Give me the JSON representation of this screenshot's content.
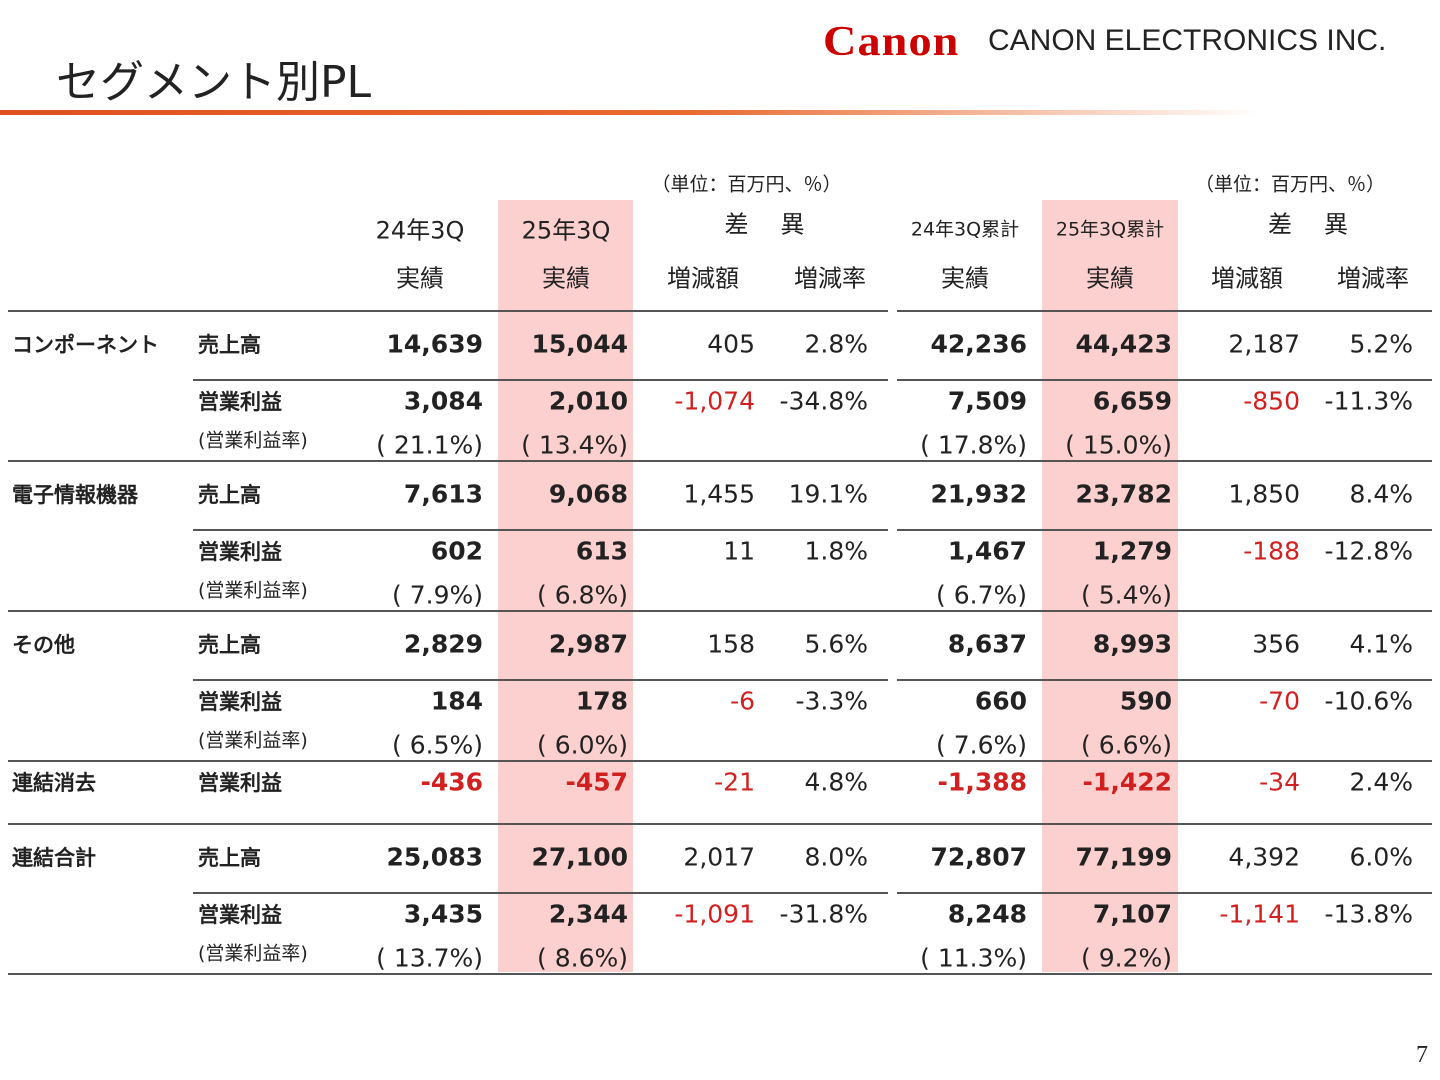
{
  "header": {
    "title": "セグメント別PL",
    "logo": "Canon",
    "company": "CANON ELECTRONICS INC."
  },
  "table": {
    "column_groups": [
      {
        "unit": "（単位：百万円、％）",
        "periods": [
          {
            "label": "24年3Q",
            "sub": "実績"
          },
          {
            "label": "25年3Q",
            "sub": "実績"
          }
        ],
        "diff": {
          "label": "差　異",
          "subs": [
            "増減額",
            "増減率"
          ]
        }
      },
      {
        "unit": "（単位：百万円、％）",
        "periods": [
          {
            "label": "24年3Q累計",
            "sub": "実績"
          },
          {
            "label": "25年3Q累計",
            "sub": "実績"
          }
        ],
        "diff": {
          "label": "差　異",
          "subs": [
            "増減額",
            "増減率"
          ]
        }
      }
    ],
    "segments": [
      {
        "name": "コンポーネント",
        "rows": [
          {
            "label": "売上高",
            "cells": [
              "14,639",
              "15,044",
              "405",
              "2.8%",
              "42,236",
              "44,423",
              "2,187",
              "5.2%"
            ]
          },
          {
            "label": "営業利益",
            "cells": [
              "3,084",
              "2,010",
              "-1,074",
              "-34.8%",
              "7,509",
              "6,659",
              "-850",
              "-11.3%"
            ]
          },
          {
            "label": "(営業利益率)",
            "cells": [
              "( 21.1%)",
              "( 13.4%)",
              "( 17.8%)",
              "( 15.0%)"
            ]
          }
        ]
      },
      {
        "name": "電子情報機器",
        "rows": [
          {
            "label": "売上高",
            "cells": [
              "7,613",
              "9,068",
              "1,455",
              "19.1%",
              "21,932",
              "23,782",
              "1,850",
              "8.4%"
            ]
          },
          {
            "label": "営業利益",
            "cells": [
              "602",
              "613",
              "11",
              "1.8%",
              "1,467",
              "1,279",
              "-188",
              "-12.8%"
            ]
          },
          {
            "label": "(営業利益率)",
            "cells": [
              "( 7.9%)",
              "( 6.8%)",
              "( 6.7%)",
              "( 5.4%)"
            ]
          }
        ]
      },
      {
        "name": "その他",
        "rows": [
          {
            "label": "売上高",
            "cells": [
              "2,829",
              "2,987",
              "158",
              "5.6%",
              "8,637",
              "8,993",
              "356",
              "4.1%"
            ]
          },
          {
            "label": "営業利益",
            "cells": [
              "184",
              "178",
              "-6",
              "-3.3%",
              "660",
              "590",
              "-70",
              "-10.6%"
            ]
          },
          {
            "label": "(営業利益率)",
            "cells": [
              "( 6.5%)",
              "( 6.0%)",
              "( 7.6%)",
              "( 6.6%)"
            ]
          }
        ]
      },
      {
        "name": "連結消去",
        "rows": [
          {
            "label": "営業利益",
            "cells": [
              "-436",
              "-457",
              "-21",
              "4.8%",
              "-1,388",
              "-1,422",
              "-34",
              "2.4%"
            ]
          }
        ]
      },
      {
        "name": "連結合計",
        "rows": [
          {
            "label": "売上高",
            "cells": [
              "25,083",
              "27,100",
              "2,017",
              "8.0%",
              "72,807",
              "77,199",
              "4,392",
              "6.0%"
            ]
          },
          {
            "label": "営業利益",
            "cells": [
              "3,435",
              "2,344",
              "-1,091",
              "-31.8%",
              "8,248",
              "7,107",
              "-1,141",
              "-13.8%"
            ]
          },
          {
            "label": "(営業利益率)",
            "cells": [
              "( 13.7%)",
              "( 8.6%)",
              "( 11.3%)",
              "( 9.2%)"
            ]
          }
        ]
      }
    ]
  },
  "footer": {
    "page": "7"
  }
}
